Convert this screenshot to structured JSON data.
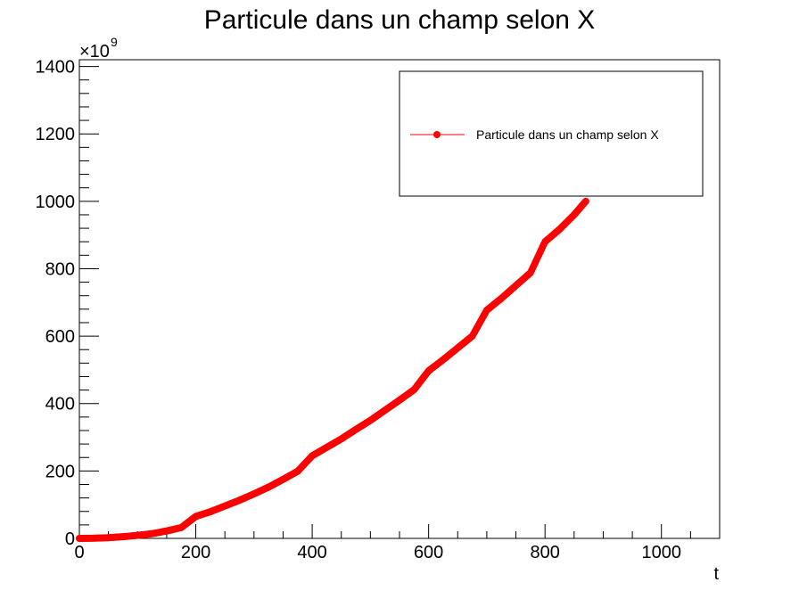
{
  "chart_data": {
    "type": "scatter",
    "title": "Particule dans un  champ selon X",
    "xlabel": "t",
    "ylabel": "",
    "y_multiplier": "×10",
    "y_multiplier_exponent": "9",
    "xlim": [
      0,
      1100
    ],
    "ylim": [
      0,
      1420
    ],
    "xticks": [
      0,
      200,
      400,
      600,
      800,
      1000
    ],
    "yticks": [
      0,
      200,
      400,
      600,
      800,
      1000,
      1200,
      1400
    ],
    "x_tick_labels": [
      "0",
      "200",
      "400",
      "600",
      "800",
      "1000"
    ],
    "y_tick_labels": [
      "0",
      "200",
      "400",
      "600",
      "800",
      "1000",
      "1200",
      "1400"
    ],
    "grid": false,
    "legend_position": "top-right",
    "marker_color": "#ff0000",
    "series": [
      {
        "name": "Particule dans un  champ selon X",
        "color": "#ff0000",
        "x": [
          0,
          25,
          50,
          75,
          100,
          125,
          150,
          175,
          200,
          225,
          250,
          275,
          300,
          325,
          350,
          375,
          400,
          425,
          450,
          475,
          500,
          525,
          550,
          575,
          600,
          625,
          650,
          675,
          700,
          725,
          750,
          775,
          800,
          825,
          850,
          870
        ],
        "y": [
          0,
          0.5,
          2,
          5,
          9,
          14,
          22,
          32,
          65,
          79,
          96,
          113,
          132,
          152,
          175,
          199,
          245,
          270,
          295,
          323,
          350,
          380,
          410,
          441,
          497,
          530,
          565,
          600,
          677,
          712,
          750,
          788,
          880,
          917,
          960,
          1000
        ]
      }
    ]
  }
}
